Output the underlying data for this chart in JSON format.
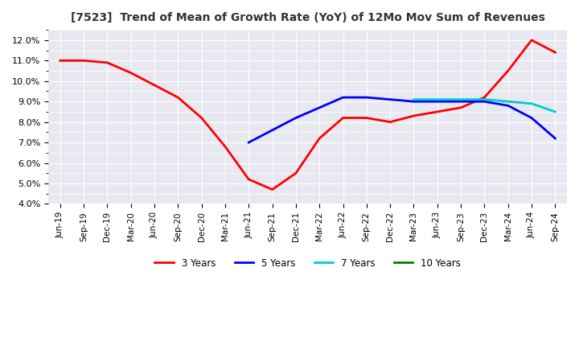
{
  "title": "[7523]  Trend of Mean of Growth Rate (YoY) of 12Mo Mov Sum of Revenues",
  "ylim": [
    0.04,
    0.125
  ],
  "yticks": [
    0.04,
    0.05,
    0.06,
    0.07,
    0.08,
    0.09,
    0.1,
    0.11,
    0.12
  ],
  "background_color": "#ffffff",
  "plot_bg_color": "#e8e8f0",
  "grid_color": "#ffffff",
  "line_colors": {
    "3y": "#ff0000",
    "5y": "#0000ff",
    "7y": "#00cccc",
    "10y": "#008000"
  },
  "line_widths": {
    "3y": 2.0,
    "5y": 2.0,
    "7y": 2.0,
    "10y": 2.0
  },
  "x_labels": [
    "Jun-19",
    "Sep-19",
    "Dec-19",
    "Mar-20",
    "Jun-20",
    "Sep-20",
    "Dec-20",
    "Mar-21",
    "Jun-21",
    "Sep-21",
    "Dec-21",
    "Mar-22",
    "Jun-22",
    "Sep-22",
    "Dec-22",
    "Mar-23",
    "Jun-23",
    "Sep-23",
    "Dec-23",
    "Mar-24",
    "Jun-24",
    "Sep-24"
  ],
  "series_3y": [
    0.11,
    0.11,
    0.109,
    0.104,
    0.098,
    0.092,
    0.082,
    0.068,
    0.052,
    0.047,
    0.055,
    0.072,
    0.082,
    0.082,
    0.08,
    0.083,
    0.085,
    0.087,
    0.092,
    0.105,
    0.12,
    0.114
  ],
  "series_5y": [
    null,
    null,
    null,
    null,
    null,
    null,
    null,
    null,
    0.07,
    0.076,
    0.082,
    0.087,
    0.092,
    0.092,
    0.091,
    0.09,
    0.09,
    0.09,
    0.09,
    0.088,
    0.082,
    0.072
  ],
  "series_7y": [
    null,
    null,
    null,
    null,
    null,
    null,
    null,
    null,
    null,
    null,
    null,
    null,
    null,
    null,
    null,
    0.091,
    0.091,
    0.091,
    0.091,
    0.09,
    0.089,
    0.085
  ],
  "series_10y": [
    null,
    null,
    null,
    null,
    null,
    null,
    null,
    null,
    null,
    null,
    null,
    null,
    null,
    null,
    null,
    null,
    null,
    null,
    null,
    null,
    null,
    null
  ],
  "legend_labels": [
    "3 Years",
    "5 Years",
    "7 Years",
    "10 Years"
  ]
}
